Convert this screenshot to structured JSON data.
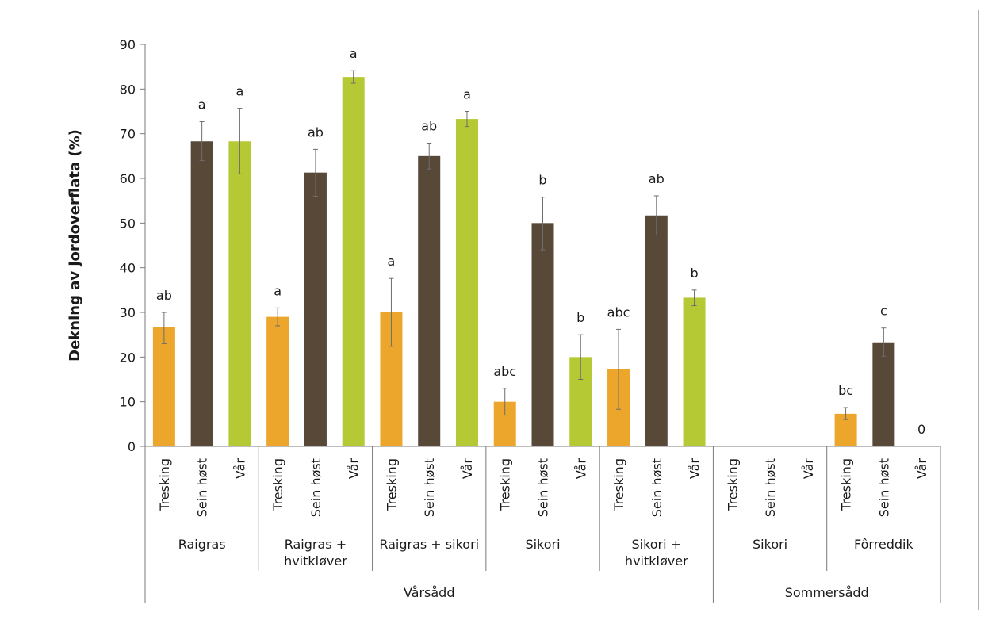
{
  "chart_data": {
    "type": "bar",
    "ylabel": "Dekning av jordoverflata (%)",
    "ylim": [
      0,
      90
    ],
    "yticks": [
      0,
      10,
      20,
      30,
      40,
      50,
      60,
      70,
      80,
      90
    ],
    "grid": false,
    "colors": {
      "Tresking": "#eda62c",
      "Sein høst": "#574837",
      "Vår": "#b5c934"
    },
    "bar_labels": [
      "Tresking",
      "Sein høst",
      "Vår"
    ],
    "groups": [
      {
        "name": "Raigras",
        "season": "Vårsådd",
        "bars": [
          {
            "treatment": "Tresking",
            "value": 26.7,
            "err_low": 23.0,
            "err_high": 30.0,
            "sig": "ab"
          },
          {
            "treatment": "Sein høst",
            "value": 68.3,
            "err_low": 64.0,
            "err_high": 72.7,
            "sig": "a"
          },
          {
            "treatment": "Vår",
            "value": 68.3,
            "err_low": 61.0,
            "err_high": 75.7,
            "sig": "a"
          }
        ]
      },
      {
        "name": "Raigras + hvitkløver",
        "season": "Vårsådd",
        "bars": [
          {
            "treatment": "Tresking",
            "value": 29.0,
            "err_low": 27.0,
            "err_high": 31.0,
            "sig": "a"
          },
          {
            "treatment": "Sein høst",
            "value": 61.3,
            "err_low": 56.0,
            "err_high": 66.5,
            "sig": "ab"
          },
          {
            "treatment": "Vår",
            "value": 82.7,
            "err_low": 81.3,
            "err_high": 84.1,
            "sig": "a"
          }
        ]
      },
      {
        "name": "Raigras + sikori",
        "season": "Vårsådd",
        "bars": [
          {
            "treatment": "Tresking",
            "value": 30.0,
            "err_low": 22.4,
            "err_high": 37.6,
            "sig": "a"
          },
          {
            "treatment": "Sein høst",
            "value": 65.0,
            "err_low": 62.1,
            "err_high": 67.9,
            "sig": "ab"
          },
          {
            "treatment": "Vår",
            "value": 73.3,
            "err_low": 71.6,
            "err_high": 75.0,
            "sig": "a"
          }
        ]
      },
      {
        "name": "Sikori",
        "season": "Vårsådd",
        "bars": [
          {
            "treatment": "Tresking",
            "value": 10.0,
            "err_low": 7.0,
            "err_high": 13.0,
            "sig": "abc"
          },
          {
            "treatment": "Sein høst",
            "value": 50.0,
            "err_low": 44.0,
            "err_high": 55.8,
            "sig": "b"
          },
          {
            "treatment": "Vår",
            "value": 20.0,
            "err_low": 15.0,
            "err_high": 25.0,
            "sig": "b"
          }
        ]
      },
      {
        "name": "Sikori + hvitkløver",
        "season": "Vårsådd",
        "bars": [
          {
            "treatment": "Tresking",
            "value": 17.3,
            "err_low": 8.3,
            "err_high": 26.2,
            "sig": "abc"
          },
          {
            "treatment": "Sein høst",
            "value": 51.7,
            "err_low": 47.3,
            "err_high": 56.1,
            "sig": "ab"
          },
          {
            "treatment": "Vår",
            "value": 33.3,
            "err_low": 31.5,
            "err_high": 35.0,
            "sig": "b"
          }
        ]
      },
      {
        "name": "Sikori",
        "season": "Sommersådd",
        "bars": [
          {
            "treatment": "Tresking",
            "value": null,
            "sig": ""
          },
          {
            "treatment": "Sein høst",
            "value": null,
            "sig": ""
          },
          {
            "treatment": "Vår",
            "value": null,
            "sig": ""
          }
        ]
      },
      {
        "name": "Fôrreddik",
        "season": "Sommersådd",
        "bars": [
          {
            "treatment": "Tresking",
            "value": 7.3,
            "err_low": 6.0,
            "err_high": 8.7,
            "sig": "bc"
          },
          {
            "treatment": "Sein høst",
            "value": 23.3,
            "err_low": 20.2,
            "err_high": 26.5,
            "sig": "c"
          },
          {
            "treatment": "Vår",
            "value": 0,
            "sig": "0"
          }
        ]
      }
    ],
    "group_label_lines": [
      [
        "Raigras"
      ],
      [
        "Raigras +",
        "hvitkløver"
      ],
      [
        "Raigras + sikori"
      ],
      [
        "Sikori"
      ],
      [
        "Sikori +",
        "hvitkløver"
      ],
      [
        "Sikori"
      ],
      [
        "Fôrreddik"
      ]
    ],
    "seasons": [
      {
        "name": "Vårsådd",
        "group_count": 5
      },
      {
        "name": "Sommersådd",
        "group_count": 2
      }
    ]
  }
}
